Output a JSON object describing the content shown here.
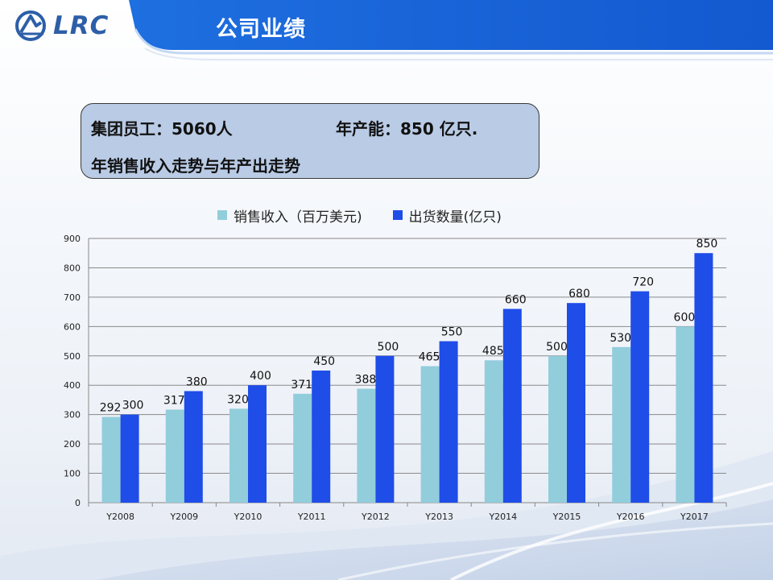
{
  "header": {
    "logo_text": "LRC",
    "title": "公司业绩"
  },
  "info_box": {
    "employees": "集团员工：5060人",
    "capacity": "年产能：850 亿只.",
    "subtitle": "年销售收入走势与年产出走势"
  },
  "colors": {
    "series_1": "#92cddc",
    "series_2": "#1f4de8",
    "header_blue": "#1565d8",
    "box_fill": "#b9cbe5"
  },
  "chart_data": {
    "type": "bar",
    "categories": [
      "Y2008",
      "Y2009",
      "Y2010",
      "Y2011",
      "Y2012",
      "Y2013",
      "Y2014",
      "Y2015",
      "Y2016",
      "Y2017"
    ],
    "series": [
      {
        "name": "销售收入（百万美元)",
        "values": [
          292,
          317,
          320,
          371,
          388,
          465,
          485,
          500,
          530,
          600
        ]
      },
      {
        "name": "出货数量(亿只)",
        "values": [
          300,
          380,
          400,
          450,
          500,
          550,
          660,
          680,
          720,
          850
        ]
      }
    ],
    "ylim": [
      0,
      900
    ],
    "yticks": [
      0,
      100,
      200,
      300,
      400,
      500,
      600,
      700,
      800,
      900
    ],
    "grid": true,
    "legend_position": "top"
  }
}
